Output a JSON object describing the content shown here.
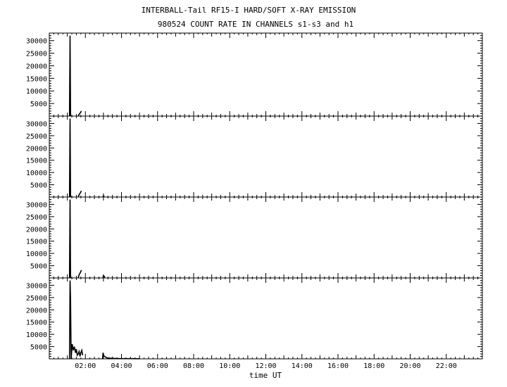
{
  "title": "INTERBALL-Tail RF15-I HARD/SOFT X-RAY EMISSION",
  "subtitle": "980524  COUNT RATE IN CHANNELS s1-s3 and h1",
  "xlabel": "time UT",
  "chart_data": {
    "type": "line",
    "xlim": [
      0,
      24
    ],
    "ylim": [
      0,
      33000
    ],
    "x_tick_labels": [
      "02:00",
      "04:00",
      "06:00",
      "08:00",
      "10:00",
      "12:00",
      "14:00",
      "16:00",
      "18:00",
      "20:00",
      "22:00"
    ],
    "x_tick_hours": [
      2,
      4,
      6,
      8,
      10,
      12,
      14,
      16,
      18,
      20,
      22
    ],
    "y_tick_labels": [
      "5000",
      "10000",
      "15000",
      "20000",
      "25000",
      "30000"
    ],
    "y_tick_values": [
      5000,
      10000,
      15000,
      20000,
      25000,
      30000
    ],
    "panels": [
      {
        "name": "s1",
        "segments": [
          [
            [
              1.12,
              0
            ],
            [
              1.15,
              32000
            ],
            [
              1.18,
              0
            ]
          ],
          [
            [
              1.6,
              0
            ],
            [
              1.65,
              700
            ],
            [
              1.72,
              1300
            ],
            [
              1.78,
              2000
            ]
          ]
        ]
      },
      {
        "name": "s2",
        "segments": [
          [
            [
              1.12,
              0
            ],
            [
              1.15,
              32000
            ],
            [
              1.18,
              0
            ]
          ],
          [
            [
              1.6,
              0
            ],
            [
              1.65,
              900
            ],
            [
              1.72,
              1700
            ],
            [
              1.78,
              2500
            ]
          ],
          [
            [
              2.97,
              0
            ],
            [
              3.0,
              500
            ],
            [
              3.05,
              200
            ]
          ]
        ]
      },
      {
        "name": "s3",
        "segments": [
          [
            [
              1.12,
              0
            ],
            [
              1.15,
              32000
            ],
            [
              1.18,
              0
            ]
          ],
          [
            [
              1.6,
              0
            ],
            [
              1.65,
              1200
            ],
            [
              1.72,
              2200
            ],
            [
              1.78,
              3200
            ]
          ],
          [
            [
              2.97,
              0
            ],
            [
              3.0,
              900
            ],
            [
              3.05,
              600
            ],
            [
              3.08,
              200
            ]
          ]
        ]
      },
      {
        "name": "h1",
        "segments": [
          [
            [
              1.12,
              0
            ],
            [
              1.15,
              32000
            ],
            [
              1.18,
              24000
            ],
            [
              1.21,
              0
            ],
            [
              1.27,
              6000
            ],
            [
              1.33,
              3500
            ],
            [
              1.39,
              5000
            ],
            [
              1.45,
              2500
            ],
            [
              1.5,
              4000
            ],
            [
              1.55,
              1500
            ],
            [
              1.6,
              2000
            ],
            [
              1.65,
              3000
            ],
            [
              1.7,
              1000
            ],
            [
              1.75,
              2500
            ],
            [
              1.8,
              3500
            ],
            [
              1.85,
              1500
            ]
          ],
          [
            [
              2.95,
              0
            ],
            [
              2.98,
              2500
            ],
            [
              3.02,
              1200
            ],
            [
              3.1,
              800
            ],
            [
              3.2,
              400
            ],
            [
              3.35,
              300
            ],
            [
              3.55,
              200
            ],
            [
              3.8,
              150
            ],
            [
              4.1,
              100
            ],
            [
              4.5,
              80
            ],
            [
              5.0,
              60
            ]
          ]
        ]
      }
    ]
  }
}
